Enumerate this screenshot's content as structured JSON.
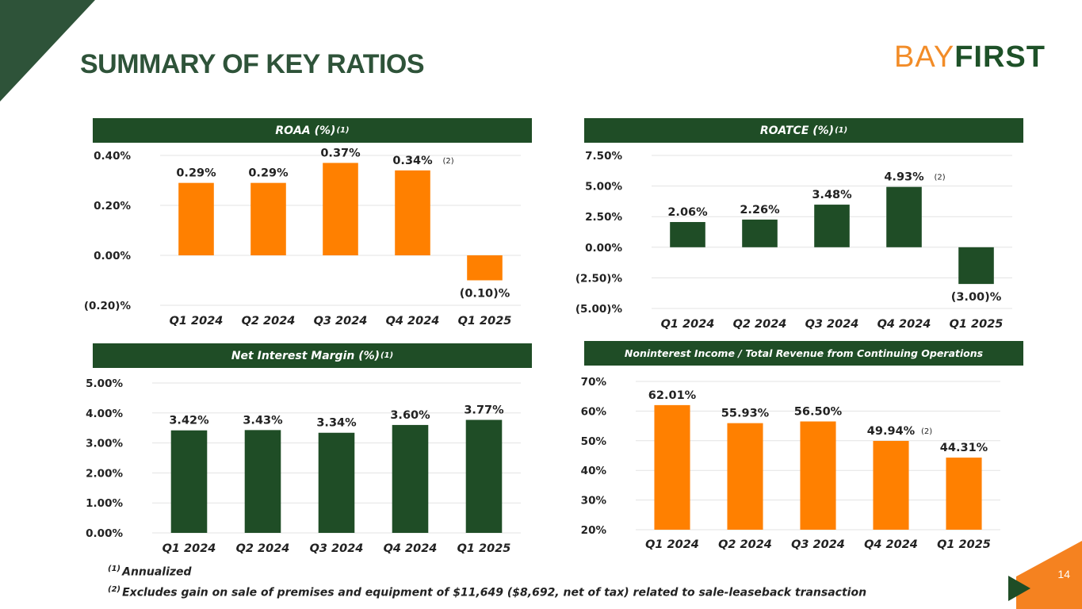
{
  "page": {
    "title": "SUMMARY OF KEY RATIOS",
    "logo": {
      "part1": "BAY",
      "part2": "FIRST"
    },
    "page_number": "14",
    "colors": {
      "green": "#1f4d26",
      "orange": "#ff8000",
      "title": "#2e5339"
    }
  },
  "footnotes": [
    {
      "marker": "(1)",
      "text": "Annualized"
    },
    {
      "marker": "(2)",
      "text": "Excludes gain on sale of premises and equipment of $11,649 ($8,692, net of tax) related to sale-leaseback transaction"
    }
  ],
  "chart_data": [
    {
      "type": "bar",
      "title": "ROAA (%)",
      "title_sup": "(1)",
      "categories": [
        "Q1 2024",
        "Q2 2024",
        "Q3 2024",
        "Q4 2024",
        "Q1 2025"
      ],
      "values": [
        0.29,
        0.29,
        0.37,
        0.34,
        -0.1
      ],
      "data_labels": [
        "0.29%",
        "0.29%",
        "0.37%",
        "0.34%",
        "(0.10)%"
      ],
      "label_notes": [
        "",
        "",
        "",
        "(2)",
        ""
      ],
      "ylim": [
        -0.2,
        0.4
      ],
      "yticks": [
        0.4,
        0.2,
        0.0,
        -0.2
      ],
      "ytick_labels": [
        "0.40%",
        "0.20%",
        "0.00%",
        "(0.20)%"
      ],
      "color": "#ff8000"
    },
    {
      "type": "bar",
      "title": "ROATCE (%)",
      "title_sup": "(1)",
      "categories": [
        "Q1 2024",
        "Q2 2024",
        "Q3 2024",
        "Q4 2024",
        "Q1 2025"
      ],
      "values": [
        2.06,
        2.26,
        3.48,
        4.93,
        -3.0
      ],
      "data_labels": [
        "2.06%",
        "2.26%",
        "3.48%",
        "4.93%",
        "(3.00)%"
      ],
      "label_notes": [
        "",
        "",
        "",
        "(2)",
        ""
      ],
      "ylim": [
        -5.0,
        7.5
      ],
      "yticks": [
        7.5,
        5.0,
        2.5,
        0.0,
        -2.5,
        -5.0
      ],
      "ytick_labels": [
        "7.50%",
        "5.00%",
        "2.50%",
        "0.00%",
        "(2.50)%",
        "(5.00)%"
      ],
      "color": "#1f4d26"
    },
    {
      "type": "bar",
      "title": "Net Interest Margin (%)",
      "title_sup": "(1)",
      "categories": [
        "Q1 2024",
        "Q2 2024",
        "Q3 2024",
        "Q4 2024",
        "Q1 2025"
      ],
      "values": [
        3.42,
        3.43,
        3.34,
        3.6,
        3.77
      ],
      "data_labels": [
        "3.42%",
        "3.43%",
        "3.34%",
        "3.60%",
        "3.77%"
      ],
      "label_notes": [
        "",
        "",
        "",
        "",
        ""
      ],
      "ylim": [
        0.0,
        5.0
      ],
      "yticks": [
        5.0,
        4.0,
        3.0,
        2.0,
        1.0,
        0.0
      ],
      "ytick_labels": [
        "5.00%",
        "4.00%",
        "3.00%",
        "2.00%",
        "1.00%",
        "0.00%"
      ],
      "color": "#1f4d26"
    },
    {
      "type": "bar",
      "title": "Noninterest Income / Total Revenue from Continuing Operations",
      "title_sup": "",
      "categories": [
        "Q1 2024",
        "Q2 2024",
        "Q3 2024",
        "Q4 2024",
        "Q1 2025"
      ],
      "values": [
        62.01,
        55.93,
        56.5,
        49.94,
        44.31
      ],
      "data_labels": [
        "62.01%",
        "55.93%",
        "56.50%",
        "49.94%",
        "44.31%"
      ],
      "label_notes": [
        "",
        "",
        "",
        "(2)",
        ""
      ],
      "ylim": [
        20,
        70
      ],
      "yticks": [
        70,
        60,
        50,
        40,
        30,
        20
      ],
      "ytick_labels": [
        "70%",
        "60%",
        "50%",
        "40%",
        "30%",
        "20%"
      ],
      "color": "#ff8000"
    }
  ]
}
